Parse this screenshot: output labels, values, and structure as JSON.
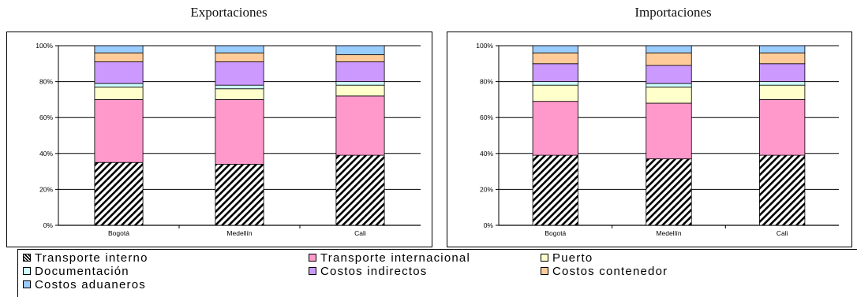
{
  "chart_data": [
    {
      "type": "bar",
      "stacked": true,
      "normalized": true,
      "title": "Exportaciones",
      "categories": [
        "Bogotá",
        "Medellín",
        "Cali"
      ],
      "ylim": [
        0,
        100
      ],
      "yticks": [
        "0%",
        "20%",
        "40%",
        "60%",
        "80%",
        "100%"
      ],
      "grid": true,
      "series": [
        {
          "name": "Transporte interno",
          "values": [
            35,
            34,
            39
          ]
        },
        {
          "name": "Transporte internacional",
          "values": [
            35,
            36,
            33
          ]
        },
        {
          "name": "Puerto",
          "values": [
            7,
            6,
            6
          ]
        },
        {
          "name": "Documentación",
          "values": [
            2,
            2,
            2
          ]
        },
        {
          "name": "Costos indirectos",
          "values": [
            12,
            13,
            11
          ]
        },
        {
          "name": "Costos contenedor",
          "values": [
            5,
            5,
            4
          ]
        },
        {
          "name": "Costos aduaneros",
          "values": [
            4,
            4,
            5
          ]
        }
      ]
    },
    {
      "type": "bar",
      "stacked": true,
      "normalized": true,
      "title": "Importaciones",
      "categories": [
        "Bogotá",
        "Medellín",
        "Cali"
      ],
      "ylim": [
        0,
        100
      ],
      "yticks": [
        "0%",
        "20%",
        "40%",
        "60%",
        "80%",
        "100%"
      ],
      "grid": true,
      "series": [
        {
          "name": "Transporte interno",
          "values": [
            39,
            37,
            39
          ]
        },
        {
          "name": "Transporte internacional",
          "values": [
            30,
            31,
            31
          ]
        },
        {
          "name": "Puerto",
          "values": [
            9,
            9,
            8
          ]
        },
        {
          "name": "Documentación",
          "values": [
            2,
            2,
            2
          ]
        },
        {
          "name": "Costos indirectos",
          "values": [
            10,
            10,
            10
          ]
        },
        {
          "name": "Costos contenedor",
          "values": [
            6,
            7,
            6
          ]
        },
        {
          "name": "Costos aduaneros",
          "values": [
            4,
            4,
            4
          ]
        }
      ]
    }
  ],
  "legend": {
    "items": [
      {
        "label": "Transporte interno",
        "color": "#ffffff",
        "pattern": "hatch"
      },
      {
        "label": "Transporte internacional",
        "color": "#ff99cc"
      },
      {
        "label": "Puerto",
        "color": "#ffffcc"
      },
      {
        "label": "Documentación",
        "color": "#ccffff"
      },
      {
        "label": "Costos indirectos",
        "color": "#cc99ff"
      },
      {
        "label": "Costos contenedor",
        "color": "#ffcc99"
      },
      {
        "label": "Costos aduaneros",
        "color": "#99ccff"
      }
    ]
  }
}
